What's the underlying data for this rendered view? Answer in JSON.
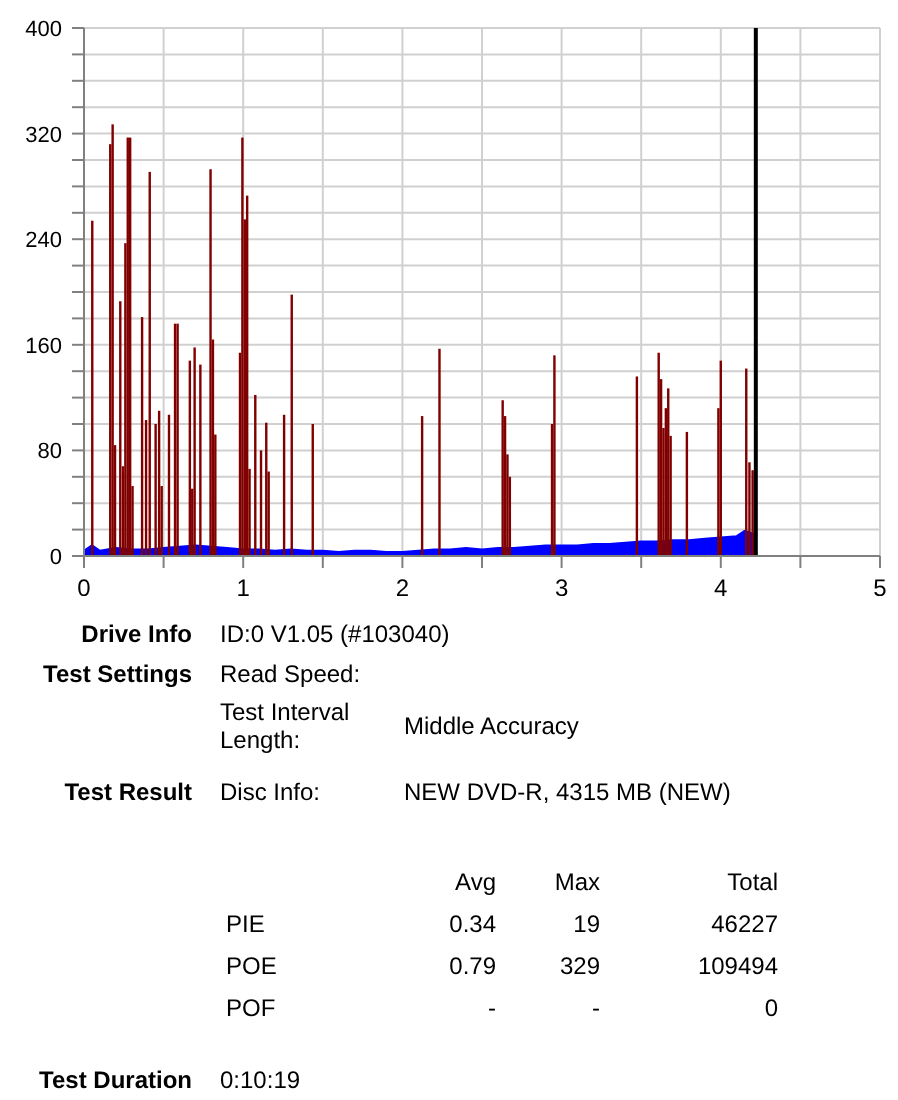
{
  "chart_data": {
    "type": "bar",
    "xlim": [
      0,
      5
    ],
    "xticks": [
      0,
      {
        "value": 0.5,
        "label": null
      },
      1,
      {
        "value": 1.5,
        "label": null
      },
      2,
      {
        "value": 2.5,
        "label": null
      },
      3,
      {
        "value": 3.5,
        "label": null
      },
      4,
      {
        "value": 4.5,
        "label": null
      },
      5
    ],
    "ylim": [
      0,
      400
    ],
    "yticks": [
      0,
      {
        "value": 20,
        "label": null
      },
      {
        "value": 40,
        "label": null
      },
      {
        "value": 60,
        "label": null
      },
      80,
      {
        "value": 100,
        "label": null
      },
      {
        "value": 120,
        "label": null
      },
      {
        "value": 140,
        "label": null
      },
      160,
      {
        "value": 180,
        "label": null
      },
      {
        "value": 200,
        "label": null
      },
      {
        "value": 220,
        "label": null
      },
      240,
      {
        "value": 260,
        "label": null
      },
      {
        "value": 280,
        "label": null
      },
      {
        "value": 300,
        "label": null
      },
      320,
      {
        "value": 340,
        "label": null
      },
      {
        "value": 360,
        "label": null
      },
      {
        "value": 380,
        "label": null
      },
      400
    ],
    "grid": true,
    "series": [
      {
        "type": "area",
        "color": "#0000ff",
        "x": [
          0,
          0.05,
          0.1,
          0.2,
          0.3,
          0.4,
          0.5,
          0.6,
          0.7,
          0.8,
          0.9,
          1.0,
          1.1,
          1.2,
          1.3,
          1.4,
          1.5,
          1.6,
          1.7,
          1.8,
          1.9,
          2.0,
          2.1,
          2.2,
          2.3,
          2.4,
          2.5,
          2.6,
          2.7,
          2.8,
          2.9,
          3.0,
          3.1,
          3.2,
          3.3,
          3.4,
          3.5,
          3.6,
          3.7,
          3.8,
          3.9,
          4.0,
          4.1,
          4.15,
          4.2,
          4.22
        ],
        "values": [
          4,
          8,
          4,
          6,
          5,
          5,
          6,
          7,
          8,
          7,
          6,
          5,
          5,
          4,
          5,
          4,
          4,
          3,
          4,
          4,
          3,
          3,
          4,
          5,
          5,
          6,
          5,
          6,
          6,
          7,
          8,
          8,
          8,
          9,
          9,
          10,
          11,
          11,
          12,
          12,
          13,
          14,
          15,
          19,
          17,
          17
        ]
      },
      {
        "color": "#800000",
        "x": [
          0.052,
          0.165,
          0.18,
          0.195,
          0.228,
          0.245,
          0.26,
          0.275,
          0.29,
          0.305,
          0.365,
          0.39,
          0.413,
          0.45,
          0.472,
          0.488,
          0.534,
          0.572,
          0.588,
          0.665,
          0.68,
          0.695,
          0.731,
          0.795,
          0.81,
          0.825,
          0.98,
          0.995,
          1.01,
          1.025,
          1.04,
          1.076,
          1.112,
          1.145,
          1.16,
          1.257,
          1.305,
          1.437,
          2.124,
          2.233,
          2.63,
          2.645,
          2.66,
          2.675,
          2.94,
          2.955,
          3.473,
          3.61,
          3.625,
          3.64,
          3.655,
          3.67,
          3.685,
          3.787,
          3.985,
          4.0,
          4.16,
          4.18,
          4.2
        ],
        "values": [
          254,
          312,
          327,
          84,
          193,
          68,
          237,
          317,
          317,
          53,
          181,
          103,
          291,
          100,
          110,
          53,
          107,
          176,
          176,
          148,
          51,
          158,
          145,
          293,
          164,
          92,
          154,
          317,
          255,
          273,
          66,
          122,
          80,
          101,
          64,
          107,
          198,
          100,
          106,
          157,
          118,
          106,
          77,
          60,
          100,
          152,
          136,
          154,
          134,
          97,
          112,
          127,
          91,
          94,
          112,
          148,
          142,
          71,
          65
        ]
      }
    ],
    "ref_lines": [
      {
        "axis": "x",
        "value": 4.22,
        "color": "#000000"
      }
    ],
    "annotations": [
      "Drive Info",
      "ID:0 V1.05 (#103040)",
      "Test Settings",
      "Read Speed:",
      "Test Interval Length:",
      "Middle Accuracy",
      "Test Result",
      "Disc Info:",
      "NEW DVD-R, 4315 MB (NEW)",
      "Avg",
      "Max",
      "Total",
      "PIE",
      "0.34",
      "19",
      "46227",
      "POE",
      "0.79",
      "329",
      "109494",
      "POF",
      "-",
      "-",
      "0",
      "Test Duration",
      "0:10:19"
    ]
  }
}
